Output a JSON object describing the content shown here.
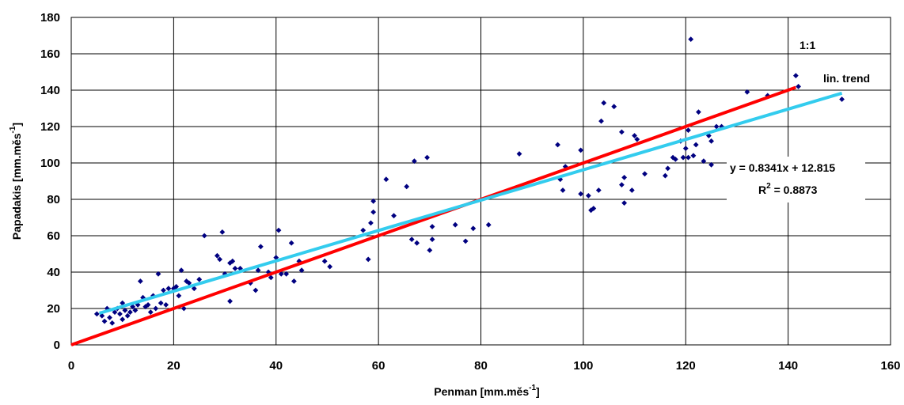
{
  "chart_data": {
    "type": "scatter",
    "xlabel": "Penman [mm.měs",
    "xlabel_sup": "-1",
    "xlabel_end": "]",
    "ylabel": "Papadakis [mm.měs",
    "ylabel_sup": "-1",
    "ylabel_end": "]",
    "xlim": [
      0,
      160
    ],
    "ylim": [
      0,
      180
    ],
    "xticks": [
      0,
      20,
      40,
      60,
      80,
      100,
      120,
      140,
      160
    ],
    "yticks": [
      0,
      20,
      40,
      60,
      80,
      100,
      120,
      140,
      160,
      180
    ],
    "grid": true,
    "colors": {
      "points": "#000080",
      "one_to_one": "#ff0000",
      "trend": "#33ccee"
    },
    "annotations": {
      "one_to_one_label": "1:1",
      "trend_label": "lin. trend",
      "equation": "y = 0.8341x + 12.815",
      "r2_prefix": "R",
      "r2_sup": "2",
      "r2_value": " = 0.8873"
    },
    "lines": [
      {
        "kind": "one_to_one",
        "x": [
          0,
          141.5
        ],
        "y": [
          0,
          141.5
        ]
      },
      {
        "kind": "trend",
        "slope": 0.8341,
        "intercept": 12.815,
        "x": [
          5.5,
          150.5
        ]
      }
    ],
    "series": [
      {
        "points": [
          [
            5,
            17
          ],
          [
            6,
            16
          ],
          [
            6.5,
            13
          ],
          [
            7,
            20
          ],
          [
            7.5,
            15
          ],
          [
            8,
            12
          ],
          [
            8.5,
            18
          ],
          [
            9,
            20
          ],
          [
            9.5,
            17
          ],
          [
            10,
            23
          ],
          [
            10,
            14
          ],
          [
            10.5,
            19
          ],
          [
            11,
            16
          ],
          [
            11.5,
            18
          ],
          [
            12,
            21
          ],
          [
            12.5,
            19
          ],
          [
            13,
            22
          ],
          [
            13.5,
            35
          ],
          [
            14,
            26
          ],
          [
            14.5,
            21
          ],
          [
            15,
            22
          ],
          [
            15.5,
            18
          ],
          [
            16,
            27
          ],
          [
            16.5,
            20
          ],
          [
            17,
            39
          ],
          [
            17.5,
            23
          ],
          [
            18,
            30
          ],
          [
            18.5,
            22
          ],
          [
            19,
            31
          ],
          [
            20,
            31
          ],
          [
            20.5,
            32
          ],
          [
            21,
            27
          ],
          [
            21.5,
            41
          ],
          [
            22,
            20
          ],
          [
            22.5,
            35
          ],
          [
            23,
            34
          ],
          [
            24,
            31
          ],
          [
            25,
            36
          ],
          [
            26,
            60
          ],
          [
            28.5,
            49
          ],
          [
            29,
            47
          ],
          [
            29.5,
            62
          ],
          [
            30,
            39
          ],
          [
            31,
            45
          ],
          [
            31,
            24
          ],
          [
            31.5,
            46
          ],
          [
            32,
            42
          ],
          [
            33,
            42
          ],
          [
            35,
            34
          ],
          [
            36,
            30
          ],
          [
            36.5,
            41
          ],
          [
            37,
            54
          ],
          [
            38.5,
            40
          ],
          [
            39,
            37
          ],
          [
            40,
            48
          ],
          [
            40.5,
            63
          ],
          [
            41,
            39
          ],
          [
            42,
            39
          ],
          [
            43,
            56
          ],
          [
            43.5,
            35
          ],
          [
            44.5,
            46
          ],
          [
            45,
            41
          ],
          [
            49.5,
            46
          ],
          [
            50.5,
            43
          ],
          [
            57,
            63
          ],
          [
            58,
            47
          ],
          [
            58.5,
            67
          ],
          [
            59,
            73
          ],
          [
            59,
            79
          ],
          [
            61.5,
            91
          ],
          [
            63,
            71
          ],
          [
            65.5,
            87
          ],
          [
            66.5,
            58
          ],
          [
            67,
            101
          ],
          [
            67.5,
            56
          ],
          [
            69.5,
            103
          ],
          [
            70,
            52
          ],
          [
            70.5,
            58
          ],
          [
            70.5,
            65
          ],
          [
            75,
            66
          ],
          [
            77,
            57
          ],
          [
            78.5,
            64
          ],
          [
            81.5,
            66
          ],
          [
            87.5,
            105
          ],
          [
            95,
            110
          ],
          [
            95.5,
            91
          ],
          [
            96,
            85
          ],
          [
            96.5,
            98
          ],
          [
            99.5,
            83
          ],
          [
            99.5,
            107
          ],
          [
            101,
            82
          ],
          [
            101.5,
            74
          ],
          [
            102,
            75
          ],
          [
            103,
            85
          ],
          [
            103.5,
            123
          ],
          [
            104,
            133
          ],
          [
            106,
            131
          ],
          [
            107.5,
            88
          ],
          [
            107.5,
            117
          ],
          [
            108,
            92
          ],
          [
            108,
            78
          ],
          [
            109.5,
            85
          ],
          [
            110,
            115
          ],
          [
            110.5,
            113
          ],
          [
            112,
            94
          ],
          [
            116,
            93
          ],
          [
            116.5,
            97
          ],
          [
            117.5,
            103
          ],
          [
            118,
            102
          ],
          [
            119,
            112
          ],
          [
            119.5,
            103
          ],
          [
            120,
            108
          ],
          [
            120.5,
            103
          ],
          [
            120.5,
            118
          ],
          [
            121,
            168
          ],
          [
            121.5,
            104
          ],
          [
            122,
            110
          ],
          [
            122.5,
            128
          ],
          [
            123.5,
            101
          ],
          [
            124.5,
            115
          ],
          [
            125,
            99
          ],
          [
            125,
            112
          ],
          [
            126,
            120
          ],
          [
            127,
            120
          ],
          [
            132,
            139
          ],
          [
            136,
            137
          ],
          [
            141.5,
            148
          ],
          [
            142,
            142
          ],
          [
            150.5,
            135
          ]
        ]
      }
    ]
  }
}
